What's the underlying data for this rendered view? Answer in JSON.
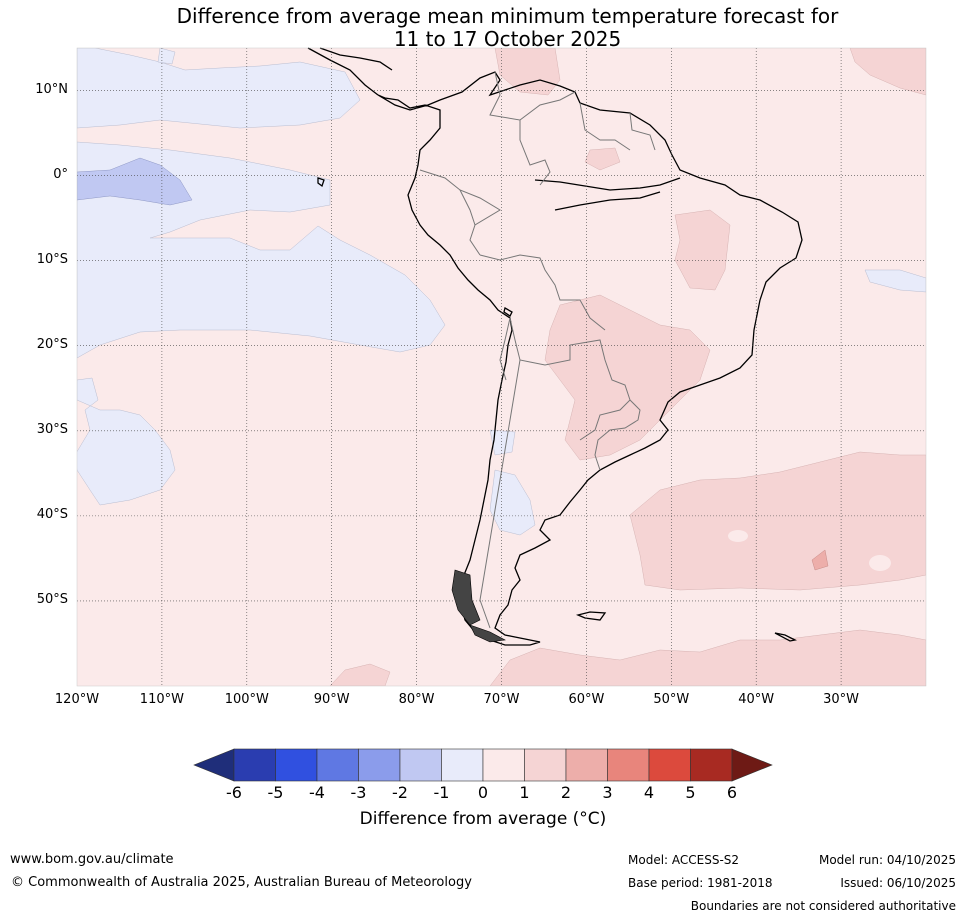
{
  "title_line1": "Difference from average mean minimum temperature forecast for",
  "title_line2": "11 to 17 October 2025",
  "map": {
    "lon_range": [
      -120,
      -20
    ],
    "lat_range": [
      -60,
      15
    ],
    "lat_labels": [
      {
        "lat": 10,
        "label": "10°N"
      },
      {
        "lat": 0,
        "label": "0°"
      },
      {
        "lat": -10,
        "label": "10°S"
      },
      {
        "lat": -20,
        "label": "20°S"
      },
      {
        "lat": -30,
        "label": "30°S"
      },
      {
        "lat": -40,
        "label": "40°S"
      },
      {
        "lat": -50,
        "label": "50°S"
      }
    ],
    "lon_labels": [
      {
        "lon": -120,
        "label": "120°W"
      },
      {
        "lon": -110,
        "label": "110°W"
      },
      {
        "lon": -100,
        "label": "100°W"
      },
      {
        "lon": -90,
        "label": "90°W"
      },
      {
        "lon": -80,
        "label": "80°W"
      },
      {
        "lon": -70,
        "label": "70°W"
      },
      {
        "lon": -60,
        "label": "60°W"
      },
      {
        "lon": -50,
        "label": "50°W"
      },
      {
        "lon": -40,
        "label": "40°W"
      },
      {
        "lon": -30,
        "label": "30°W"
      }
    ]
  },
  "colorbar": {
    "title": "Difference from average (°C)",
    "ticks": [
      "-6",
      "-5",
      "-4",
      "-3",
      "-2",
      "-1",
      "0",
      "1",
      "2",
      "3",
      "4",
      "5",
      "6"
    ],
    "colors": [
      "#1f2e7a",
      "#2a3db0",
      "#3050e0",
      "#5f78e3",
      "#8b9ceb",
      "#c0c8f2",
      "#e8ebfa",
      "#fbeaea",
      "#f5d4d4",
      "#edaeaa",
      "#e8857c",
      "#dc4a3d",
      "#a82a22",
      "#6e1a15"
    ]
  },
  "footer": {
    "website": "www.bom.gov.au/climate",
    "copyright": "© Commonwealth of Australia 2025, Australian Bureau of Meteorology",
    "model": "Model: ACCESS-S2",
    "base_period": "Base period: 1981-2018",
    "model_run": "Model run: 04/10/2025",
    "issued": "Issued: 06/10/2025",
    "disclaimer": "Boundaries are not considered authoritative"
  }
}
